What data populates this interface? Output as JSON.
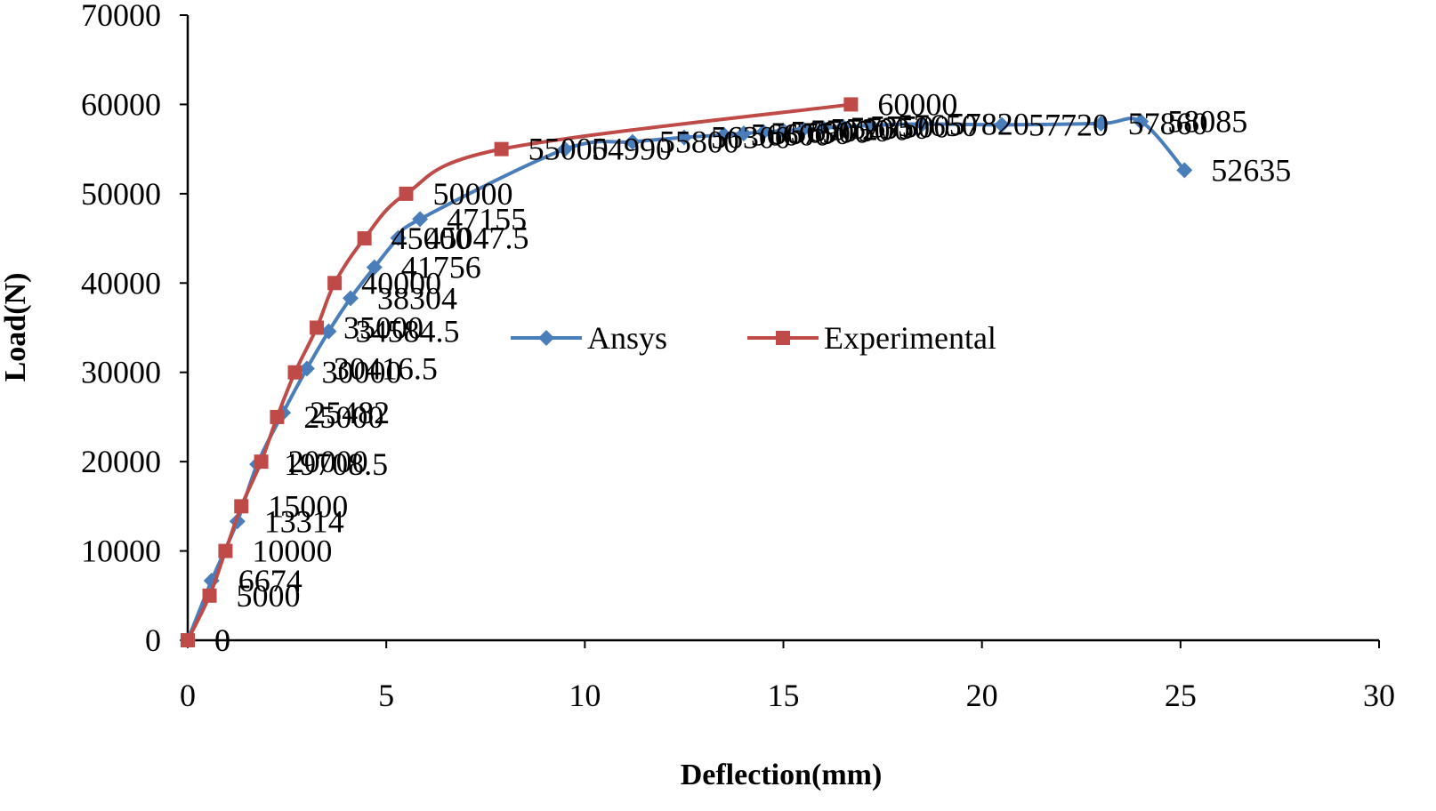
{
  "chart_data": {
    "type": "line",
    "xlabel": "Deflection(mm)",
    "ylabel": "Load(N)",
    "xlim": [
      0,
      30
    ],
    "ylim": [
      0,
      70000
    ],
    "x_ticks": [
      "0",
      "5",
      "10",
      "15",
      "20",
      "25",
      "30"
    ],
    "y_ticks": [
      "0",
      "10000",
      "20000",
      "30000",
      "40000",
      "50000",
      "60000",
      "70000"
    ],
    "grid": false,
    "legend": "center-right",
    "series": [
      {
        "name": "Ansys",
        "color": "#4A7EBB",
        "marker": "diamond",
        "points": [
          {
            "x": 0,
            "y": 0,
            "label": "0"
          },
          {
            "x": 0.6,
            "y": 6674,
            "label": "6674"
          },
          {
            "x": 1.25,
            "y": 13314,
            "label": "13314"
          },
          {
            "x": 1.75,
            "y": 19708.5,
            "label": "19708.5"
          },
          {
            "x": 2.4,
            "y": 25482,
            "label": "25482"
          },
          {
            "x": 3.0,
            "y": 30416.5,
            "label": "30416.5"
          },
          {
            "x": 3.55,
            "y": 34584.5,
            "label": "34584.5"
          },
          {
            "x": 4.1,
            "y": 38304,
            "label": "38304"
          },
          {
            "x": 4.7,
            "y": 41756,
            "label": "41756"
          },
          {
            "x": 5.3,
            "y": 45047.5,
            "label": "45047.5"
          },
          {
            "x": 5.85,
            "y": 47155,
            "label": "47155"
          },
          {
            "x": 9.5,
            "y": 54990,
            "label": "54990"
          },
          {
            "x": 11.2,
            "y": 55800,
            "label": "55800"
          },
          {
            "x": 12.5,
            "y": 56300,
            "label": "56300"
          },
          {
            "x": 13.5,
            "y": 56600,
            "label": "56600"
          },
          {
            "x": 14.0,
            "y": 56750,
            "label": "56750"
          },
          {
            "x": 14.5,
            "y": 56900,
            "label": "56900"
          },
          {
            "x": 15.0,
            "y": 57050,
            "label": "57050"
          },
          {
            "x": 15.5,
            "y": 57200,
            "label": "57200"
          },
          {
            "x": 16.0,
            "y": 57350,
            "label": "57350"
          },
          {
            "x": 16.5,
            "y": 57500,
            "label": "57500"
          },
          {
            "x": 17.2,
            "y": 57650,
            "label": "57650"
          },
          {
            "x": 18.5,
            "y": 57820,
            "label": "57820"
          },
          {
            "x": 20.5,
            "y": 57720,
            "label": "57720"
          },
          {
            "x": 23.0,
            "y": 57860,
            "label": "57860"
          },
          {
            "x": 24.0,
            "y": 58085,
            "label": "58085"
          },
          {
            "x": 25.1,
            "y": 52635,
            "label": "52635"
          }
        ]
      },
      {
        "name": "Experimental",
        "color": "#BE4B48",
        "marker": "square",
        "points": [
          {
            "x": 0,
            "y": 0,
            "label": "0"
          },
          {
            "x": 0.55,
            "y": 5000,
            "label": "5000"
          },
          {
            "x": 0.95,
            "y": 10000,
            "label": "10000"
          },
          {
            "x": 1.35,
            "y": 15000,
            "label": "15000"
          },
          {
            "x": 1.85,
            "y": 20000,
            "label": "20000"
          },
          {
            "x": 2.25,
            "y": 25000,
            "label": "25000"
          },
          {
            "x": 2.7,
            "y": 30000,
            "label": "30000"
          },
          {
            "x": 3.25,
            "y": 35000,
            "label": "35000"
          },
          {
            "x": 3.7,
            "y": 40000,
            "label": "40000"
          },
          {
            "x": 4.45,
            "y": 45000,
            "label": "45000"
          },
          {
            "x": 5.5,
            "y": 50000,
            "label": "50000"
          },
          {
            "x": 7.9,
            "y": 55000,
            "label": "55000"
          },
          {
            "x": 16.7,
            "y": 60000,
            "label": "60000"
          }
        ]
      }
    ]
  }
}
